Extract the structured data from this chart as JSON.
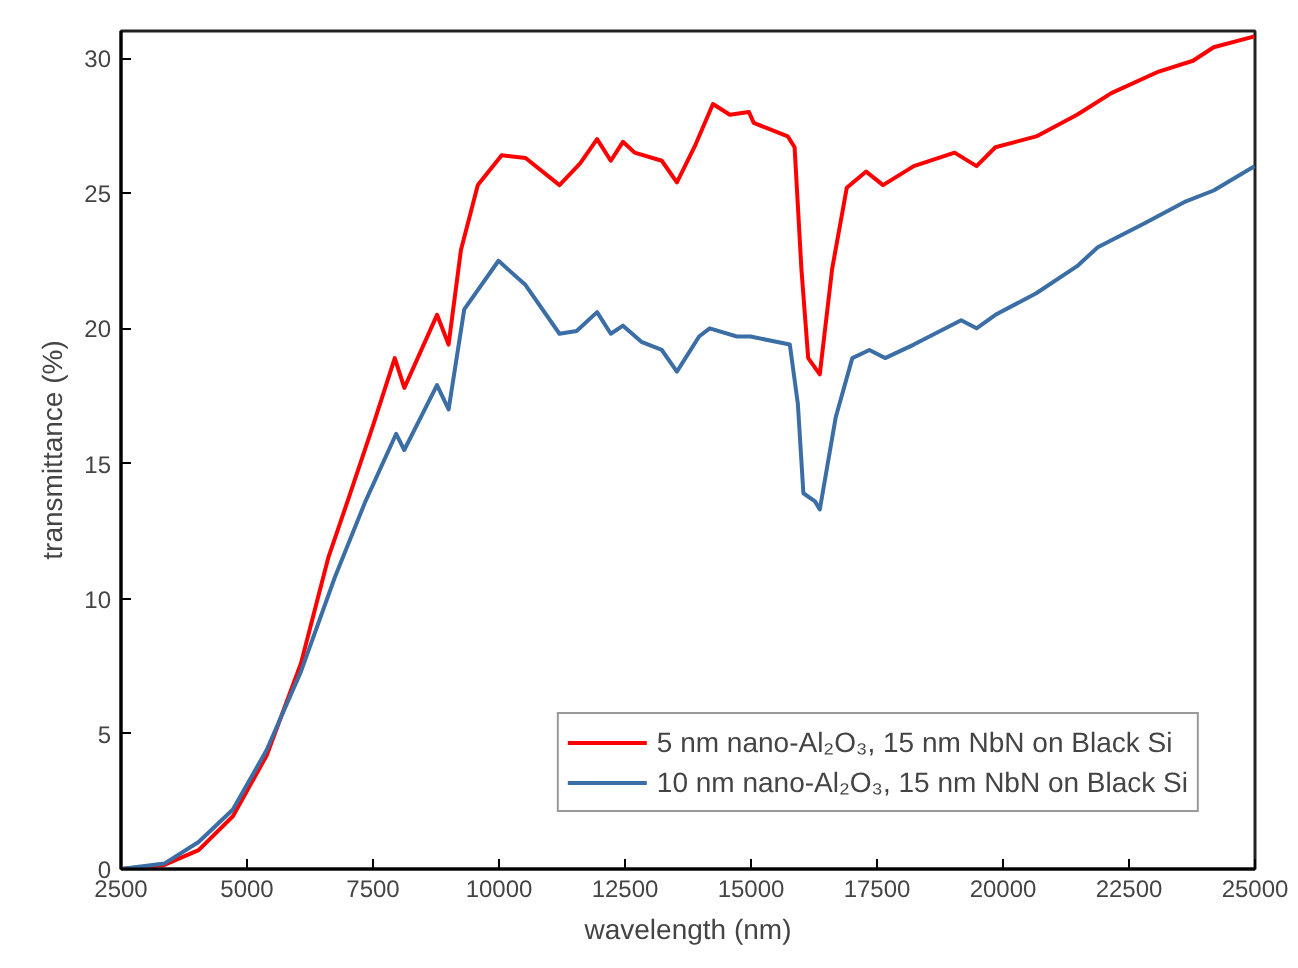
{
  "chart_data": {
    "type": "line",
    "xlabel": "wavelength (nm)",
    "ylabel": "transmittance (%)",
    "xlim": [
      2500,
      25000
    ],
    "ylim": [
      0,
      31
    ],
    "xticks": [
      2500,
      5000,
      7500,
      10000,
      12500,
      15000,
      17500,
      20000,
      22500,
      25000
    ],
    "yticks": [
      0,
      5,
      10,
      15,
      20,
      25,
      30
    ],
    "grid": false,
    "legend": "bottom right",
    "marker": "none",
    "line_style": "solid",
    "series": [
      {
        "name": "5 nm nano-Al₂O₃, 15 nm NbN on Black Si",
        "color": "#ff0000",
        "x": [
          2500,
          3360,
          4040,
          4720,
          5390,
          6070,
          6610,
          7013,
          7500,
          7932,
          8122,
          8771,
          9000,
          9245,
          9580,
          10053,
          10527,
          11200,
          11610,
          11946,
          12218,
          12460,
          12690,
          13230,
          13530,
          13900,
          14245,
          14580,
          14960,
          15055,
          15730,
          15865,
          16000,
          16135,
          16365,
          16610,
          16900,
          17285,
          17620,
          18230,
          19040,
          19475,
          19850,
          20660,
          21470,
          22150,
          23090,
          23770,
          24180,
          24990
        ],
        "values": [
          0,
          0.15,
          0.7,
          1.95,
          4.2,
          7.6,
          11.5,
          13.7,
          16.4,
          18.9,
          17.8,
          20.5,
          19.4,
          22.9,
          25.3,
          26.4,
          26.3,
          25.3,
          26.1,
          27.0,
          26.2,
          26.9,
          26.5,
          26.2,
          25.4,
          26.8,
          28.3,
          27.9,
          28.0,
          27.6,
          27.1,
          26.7,
          22.2,
          18.9,
          18.3,
          22.2,
          25.2,
          25.8,
          25.3,
          26.0,
          26.5,
          26.0,
          26.7,
          27.1,
          27.9,
          28.7,
          29.5,
          29.9,
          30.4,
          30.8
        ]
      },
      {
        "name": "10 nm nano-Al₂O₃, 15 nm NbN on Black Si",
        "color": "#3b6ea5",
        "x": [
          2500,
          3360,
          4040,
          4720,
          5390,
          6070,
          6745,
          7350,
          7960,
          8120,
          8770,
          9000,
          9310,
          9990,
          10527,
          11200,
          11540,
          11946,
          12218,
          12460,
          12825,
          13230,
          13530,
          13970,
          14180,
          14720,
          14990,
          15770,
          15930,
          16040,
          16270,
          16365,
          16680,
          17010,
          17350,
          17660,
          18230,
          19170,
          19475,
          19850,
          20660,
          21470,
          21880,
          22820,
          23630,
          24180,
          24990
        ],
        "values": [
          0,
          0.2,
          1.0,
          2.2,
          4.4,
          7.3,
          10.8,
          13.6,
          16.1,
          15.5,
          17.9,
          17.0,
          20.7,
          22.5,
          21.6,
          19.8,
          19.9,
          20.6,
          19.8,
          20.1,
          19.5,
          19.2,
          18.4,
          19.7,
          20.0,
          19.7,
          19.7,
          19.4,
          17.2,
          13.9,
          13.6,
          13.3,
          16.7,
          18.9,
          19.2,
          18.9,
          19.4,
          20.3,
          20.0,
          20.5,
          21.3,
          22.3,
          23.0,
          23.9,
          24.7,
          25.1,
          26.0
        ]
      }
    ]
  }
}
